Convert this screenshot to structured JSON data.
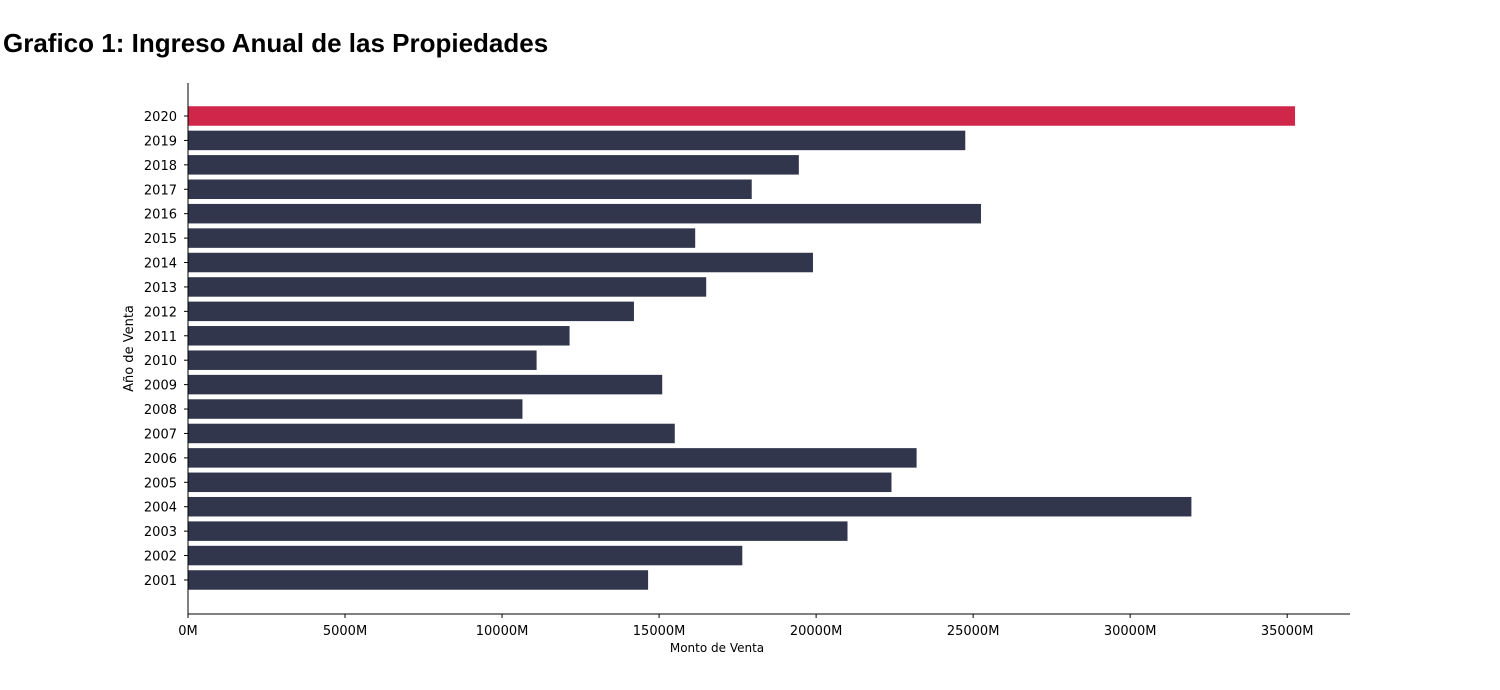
{
  "chart_data": {
    "type": "bar",
    "orientation": "horizontal",
    "title": "Grafico 1: Ingreso Anual de las Propiedades",
    "xlabel": "Monto de Venta",
    "ylabel": "Año de Venta",
    "xlim": [
      0,
      37000
    ],
    "x_tick_values": [
      0,
      5000,
      10000,
      15000,
      20000,
      25000,
      30000,
      35000
    ],
    "x_tick_labels": [
      "0M",
      "5000M",
      "10000M",
      "15000M",
      "20000M",
      "25000M",
      "30000M",
      "35000M"
    ],
    "categories": [
      "2020",
      "2019",
      "2018",
      "2017",
      "2016",
      "2015",
      "2014",
      "2013",
      "2012",
      "2011",
      "2010",
      "2009",
      "2008",
      "2007",
      "2006",
      "2005",
      "2004",
      "2003",
      "2002",
      "2001"
    ],
    "values": [
      35250,
      24750,
      19450,
      17950,
      25250,
      16150,
      19900,
      16500,
      14200,
      12150,
      11100,
      15100,
      10650,
      15500,
      23200,
      22400,
      31950,
      21000,
      17650,
      14650
    ],
    "colors": {
      "default": "#32364d",
      "highlight": "#cf2649",
      "highlight_category": "2020"
    },
    "grid": false,
    "legend": "none"
  }
}
